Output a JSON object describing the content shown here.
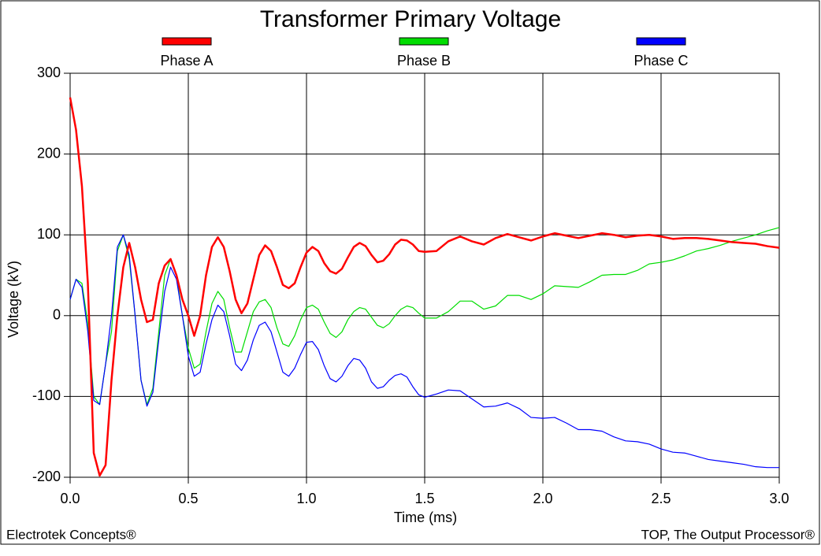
{
  "chart_data": {
    "type": "line",
    "title": "Transformer Primary Voltage",
    "x_label": "Time (ms)",
    "y_label": "Voltage (kV)",
    "annotations": [
      "Electrotek Concepts®",
      "TOP, The Output Processor®"
    ],
    "xlim": [
      0,
      3.0
    ],
    "ylim": [
      -200,
      300
    ],
    "xticks": [
      {
        "value": 0,
        "label": "0.0"
      },
      {
        "value": 0.5,
        "label": "0.5"
      },
      {
        "value": 1.0,
        "label": "1.0"
      },
      {
        "value": 1.5,
        "label": "1.5"
      },
      {
        "value": 2.0,
        "label": "2.0"
      },
      {
        "value": 2.5,
        "label": "2.5"
      },
      {
        "value": 3.0,
        "label": "3.0"
      }
    ],
    "yticks": [
      -200,
      -100,
      0,
      100,
      200,
      300
    ],
    "grid": true,
    "legend": "top",
    "x": [
      0,
      0.025,
      0.05,
      0.075,
      0.1,
      0.125,
      0.15,
      0.175,
      0.2,
      0.225,
      0.25,
      0.275,
      0.3,
      0.325,
      0.35,
      0.375,
      0.4,
      0.425,
      0.45,
      0.475,
      0.5,
      0.525,
      0.55,
      0.575,
      0.6,
      0.625,
      0.65,
      0.675,
      0.7,
      0.725,
      0.75,
      0.775,
      0.8,
      0.825,
      0.85,
      0.875,
      0.9,
      0.925,
      0.95,
      0.975,
      1.0,
      1.025,
      1.05,
      1.075,
      1.1,
      1.125,
      1.15,
      1.175,
      1.2,
      1.225,
      1.25,
      1.275,
      1.3,
      1.325,
      1.35,
      1.375,
      1.4,
      1.425,
      1.45,
      1.475,
      1.5,
      1.55,
      1.6,
      1.65,
      1.7,
      1.75,
      1.8,
      1.85,
      1.9,
      1.95,
      2.0,
      2.05,
      2.1,
      2.15,
      2.2,
      2.25,
      2.3,
      2.35,
      2.4,
      2.45,
      2.5,
      2.55,
      2.6,
      2.65,
      2.7,
      2.75,
      2.8,
      2.85,
      2.9,
      2.95,
      3.0
    ],
    "series": [
      {
        "name": "Phase A",
        "color": "#ff0000",
        "values": [
          270,
          230,
          160,
          40,
          -170,
          -198,
          -185,
          -80,
          0,
          60,
          90,
          60,
          20,
          -8,
          -5,
          40,
          62,
          70,
          50,
          20,
          0,
          -25,
          0,
          50,
          85,
          97,
          85,
          55,
          20,
          3,
          15,
          45,
          75,
          87,
          80,
          60,
          38,
          34,
          40,
          60,
          78,
          85,
          80,
          65,
          55,
          52,
          58,
          72,
          85,
          90,
          86,
          75,
          66,
          68,
          76,
          88,
          94,
          93,
          88,
          80,
          79,
          80,
          92,
          98,
          92,
          88,
          96,
          101,
          97,
          93,
          98,
          102,
          99,
          96,
          99,
          102,
          100,
          97,
          99,
          100,
          98,
          95,
          96,
          96,
          95,
          93,
          91,
          90,
          89,
          86,
          84
        ]
      },
      {
        "name": "Phase B",
        "color": "#00dd00",
        "values": [
          20,
          45,
          40,
          -10,
          -100,
          -110,
          -60,
          -20,
          80,
          100,
          70,
          0,
          -80,
          -110,
          -90,
          -20,
          50,
          70,
          50,
          0,
          -40,
          -65,
          -60,
          -20,
          15,
          30,
          20,
          -15,
          -45,
          -45,
          -20,
          5,
          17,
          20,
          10,
          -15,
          -35,
          -38,
          -25,
          -5,
          10,
          13,
          8,
          -8,
          -22,
          -27,
          -20,
          -5,
          5,
          10,
          8,
          -2,
          -12,
          -15,
          -10,
          0,
          8,
          12,
          10,
          3,
          -3,
          -3,
          5,
          18,
          18,
          8,
          12,
          25,
          25,
          20,
          27,
          37,
          36,
          35,
          42,
          50,
          51,
          51,
          56,
          64,
          66,
          69,
          74,
          80,
          83,
          87,
          92,
          96,
          100,
          105,
          109
        ]
      },
      {
        "name": "Phase C",
        "color": "#0000ff",
        "values": [
          20,
          45,
          35,
          -20,
          -105,
          -110,
          -60,
          0,
          85,
          100,
          75,
          0,
          -80,
          -112,
          -95,
          -30,
          30,
          60,
          45,
          0,
          -50,
          -75,
          -70,
          -35,
          -5,
          13,
          5,
          -25,
          -60,
          -68,
          -55,
          -30,
          -12,
          -8,
          -20,
          -45,
          -70,
          -75,
          -65,
          -48,
          -33,
          -32,
          -42,
          -62,
          -78,
          -82,
          -75,
          -62,
          -53,
          -55,
          -65,
          -82,
          -90,
          -88,
          -80,
          -74,
          -72,
          -76,
          -88,
          -98,
          -101,
          -97,
          -92,
          -93,
          -103,
          -113,
          -112,
          -108,
          -115,
          -126,
          -127,
          -126,
          -133,
          -141,
          -141,
          -143,
          -150,
          -155,
          -156,
          -159,
          -165,
          -169,
          -170,
          -174,
          -178,
          -180,
          -182,
          -184,
          -187,
          -188,
          -188
        ]
      }
    ]
  }
}
